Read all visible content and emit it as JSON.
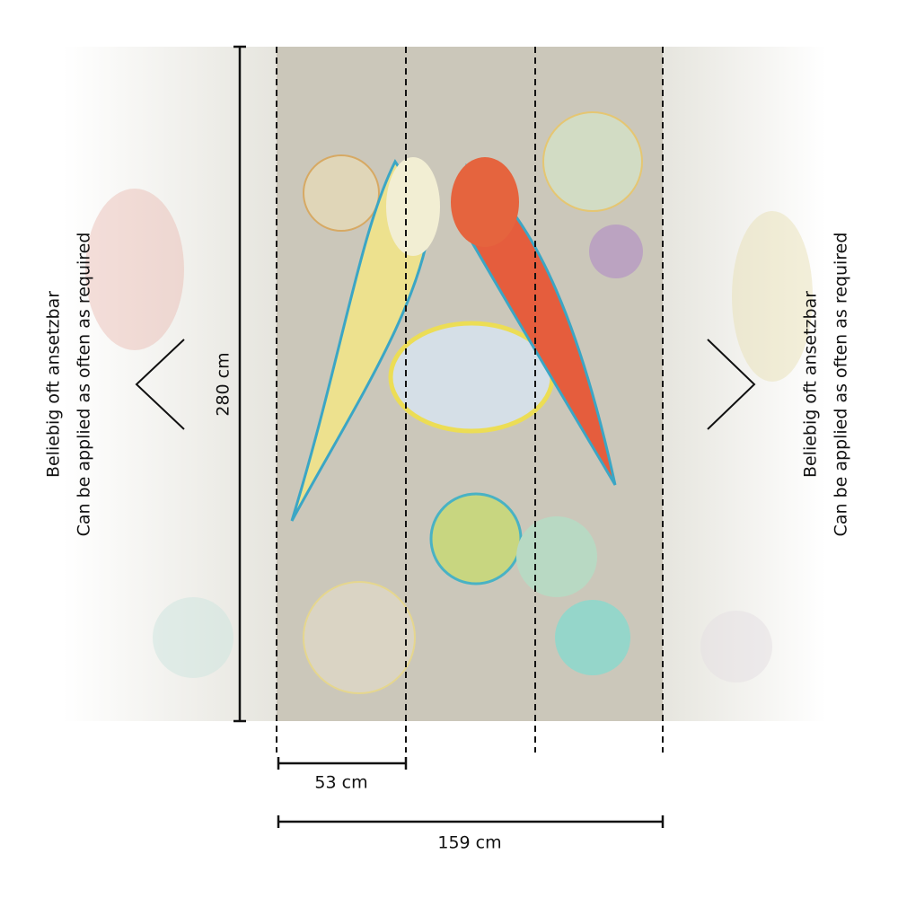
{
  "dimensions": {
    "height": "280 cm",
    "panel_width": "53 cm",
    "total_width": "159 cm"
  },
  "repeat_note_left": {
    "line1": "Beliebig oft ansetzbar",
    "line2": "Can be applied as often as required"
  },
  "repeat_note_right": {
    "line1": "Beliebig oft ansetzbar",
    "line2": "Can be applied as often as required"
  }
}
